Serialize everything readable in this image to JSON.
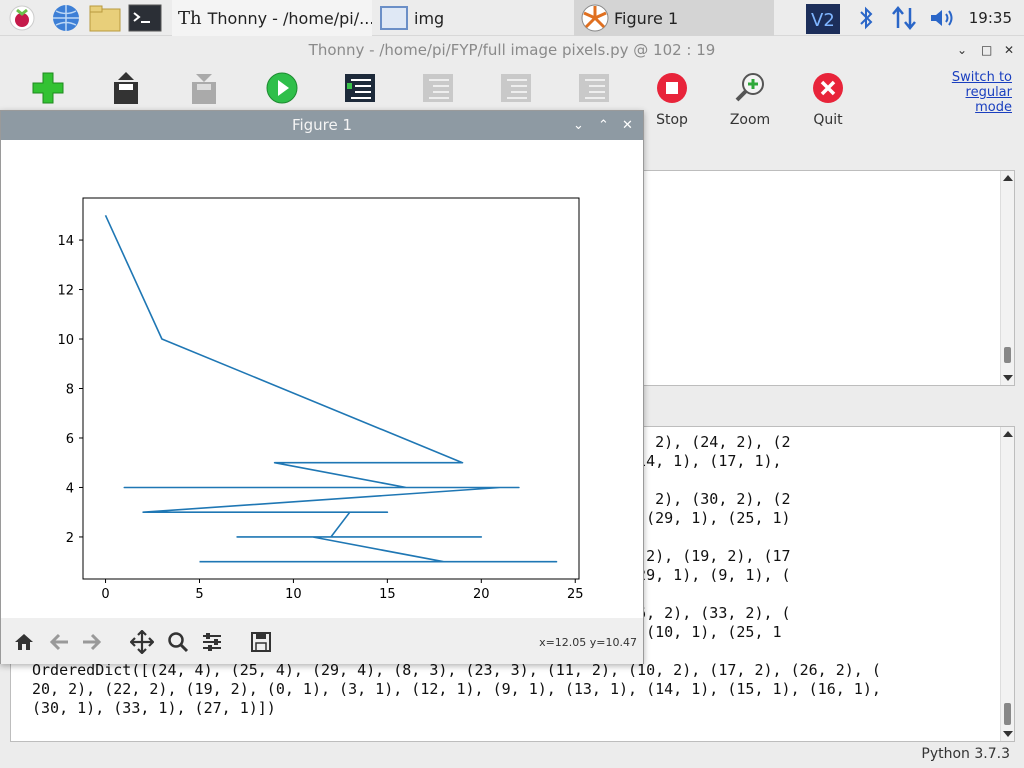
{
  "taskbar": {
    "tasks": [
      {
        "label": "Thonny  -  /home/pi/..."
      },
      {
        "label": "img"
      },
      {
        "label": "Figure 1"
      }
    ],
    "clock": "19:35",
    "icons": [
      "raspberry-menu-icon",
      "web-browser-icon",
      "file-manager-icon",
      "terminal-icon",
      "vnc-icon",
      "bluetooth-icon",
      "network-icon",
      "volume-icon"
    ]
  },
  "thonny": {
    "title": "Thonny  -  /home/pi/FYP/full image  pixels.py  @  102 : 19",
    "toolbar": [
      {
        "label": "",
        "icon": "new-icon"
      },
      {
        "label": "",
        "icon": "load-icon"
      },
      {
        "label": "",
        "icon": "save-icon"
      },
      {
        "label": "",
        "icon": "run-icon"
      },
      {
        "label": "",
        "icon": "debug-icon"
      },
      {
        "label": "",
        "icon": "step-over-icon"
      },
      {
        "label": "",
        "icon": "step-into-icon"
      },
      {
        "label": "",
        "icon": "step-out-icon"
      },
      {
        "label": "Stop",
        "icon": "stop-icon"
      },
      {
        "label": "Zoom",
        "icon": "zoom-icon"
      },
      {
        "label": "Quit",
        "icon": "quit-icon"
      }
    ],
    "switch_mode": "Switch to regular mode",
    "status": "Python 3.7.3",
    "shell_lines": [
      "                                                   2), (12, 2), (16, 2), (24, 2), (2",
      "                                                   , 1), (11, 1), (14, 1), (17, 1),",
      "",
      "                                                   2), (22, 2), (13, 2), (30, 2), (2",
      "                                                   20, 1), (23, 1), (29, 1), (25, 1)",
      "",
      "                                                   ), (20, 2), (13, 2), (19, 2), (17",
      "                                                   , 1), (24, 1), (29, 1), (9, 1), (",
      "",
      "                                                    2), (21, 2), (26, 2), (33, 2), (",
      "                                                   (12, 1), (5, 1), (10, 1), (25, 1",
      "",
      "OrderedDict([(24, 4), (25, 4), (29, 4), (8, 3), (23, 3), (11, 2), (10, 2), (17, 2), (26, 2), (",
      "20, 2), (22, 2), (19, 2), (0, 1), (3, 1), (12, 1), (9, 1), (13, 1), (14, 1), (15, 1), (16, 1),",
      "(30, 1), (33, 1), (27, 1)])"
    ]
  },
  "figure": {
    "title": "Figure 1",
    "coords": "x=12.05 y=10.47",
    "nav": [
      "home-icon",
      "back-icon",
      "forward-icon",
      "pan-icon",
      "zoom-rect-icon",
      "configure-icon",
      "save-figure-icon"
    ]
  },
  "chart_data": {
    "type": "line",
    "title": "",
    "xlabel": "",
    "ylabel": "",
    "xlim": [
      -1.2,
      25.2
    ],
    "ylim": [
      0.3,
      15.7
    ],
    "xticks": [
      0,
      5,
      10,
      15,
      20,
      25
    ],
    "yticks": [
      2,
      4,
      6,
      8,
      10,
      12,
      14
    ],
    "grid": false,
    "color": "#1f77b4",
    "x": [
      0,
      3,
      19,
      9,
      16,
      22,
      1,
      21,
      2,
      15,
      4,
      13,
      12,
      20,
      7,
      11,
      18,
      24,
      5
    ],
    "y": [
      15,
      10,
      5,
      5,
      4,
      4,
      4,
      4,
      3,
      3,
      3,
      3,
      2,
      2,
      2,
      2,
      1,
      1,
      1
    ]
  }
}
